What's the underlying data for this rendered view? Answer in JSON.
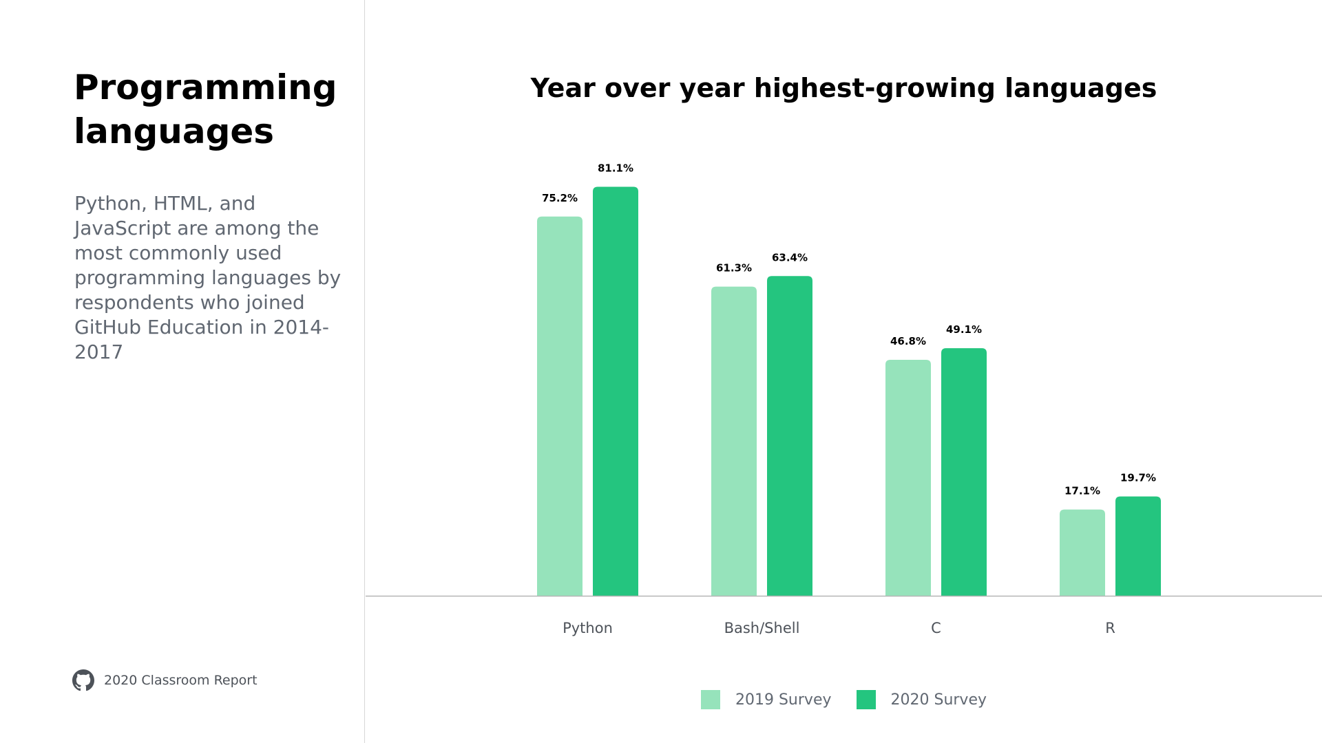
{
  "header": {
    "title": "Programming languages",
    "description": "Python, HTML, and JavaScript are among the most commonly used programming languages by respondents who joined GitHub Education in 2014-2017"
  },
  "footer": {
    "icon": "github-icon",
    "text": "2020 Classroom Report"
  },
  "colors": {
    "series_2019": "#96e3bb",
    "series_2020": "#24c57f",
    "axis": "#b5b5b5"
  },
  "chart_data": {
    "type": "bar",
    "title": "Year over year highest-growing languages",
    "xlabel": "",
    "ylabel": "",
    "categories": [
      "Python",
      "Bash/Shell",
      "C",
      "R"
    ],
    "series": [
      {
        "name": "2019 Survey",
        "values": [
          75.2,
          61.3,
          46.8,
          17.1
        ],
        "labels": [
          "75.2%",
          "61.3%",
          "46.8%",
          "17.1%"
        ]
      },
      {
        "name": "2020 Survey",
        "values": [
          81.1,
          63.4,
          49.1,
          19.7
        ],
        "labels": [
          "81.1%",
          "63.4%",
          "49.1%",
          "19.7%"
        ]
      }
    ],
    "ylim": [
      0,
      100
    ],
    "grid": false,
    "legend": "bottom"
  }
}
